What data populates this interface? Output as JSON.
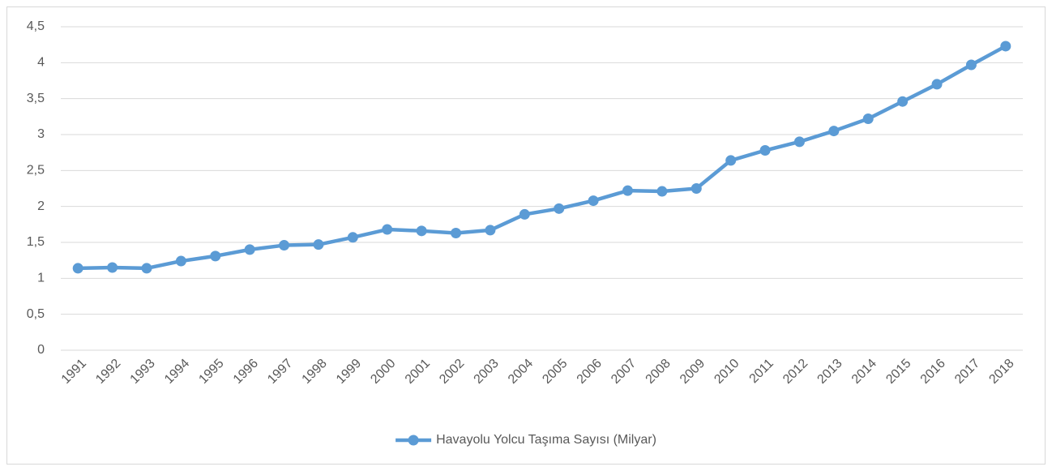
{
  "chart_data": {
    "type": "line",
    "categories": [
      "1991",
      "1992",
      "1993",
      "1994",
      "1995",
      "1996",
      "1997",
      "1998",
      "1999",
      "2000",
      "2001",
      "2002",
      "2003",
      "2004",
      "2005",
      "2006",
      "2007",
      "2008",
      "2009",
      "2010",
      "2011",
      "2012",
      "2013",
      "2014",
      "2015",
      "2016",
      "2017",
      "2018"
    ],
    "series": [
      {
        "name": "Havayolu Yolcu Taşıma Sayısı (Milyar)",
        "color": "#5b9bd5",
        "values": [
          1.14,
          1.15,
          1.14,
          1.24,
          1.31,
          1.4,
          1.46,
          1.47,
          1.57,
          1.68,
          1.66,
          1.63,
          1.67,
          1.89,
          1.97,
          2.08,
          2.22,
          2.21,
          2.25,
          2.64,
          2.78,
          2.9,
          3.05,
          3.22,
          3.46,
          3.7,
          3.97,
          4.23
        ]
      }
    ],
    "ylim": [
      0,
      4.5
    ],
    "yticks": [
      0,
      {
        "value": 0.5,
        "label": "0,5"
      },
      1,
      {
        "value": 1.5,
        "label": "1,5"
      },
      2,
      {
        "value": 2.5,
        "label": "2,5"
      },
      3,
      {
        "value": 3.5,
        "label": "3,5"
      },
      4,
      {
        "value": 4.5,
        "label": "4,5"
      }
    ],
    "grid": true,
    "legend": "bottom"
  }
}
